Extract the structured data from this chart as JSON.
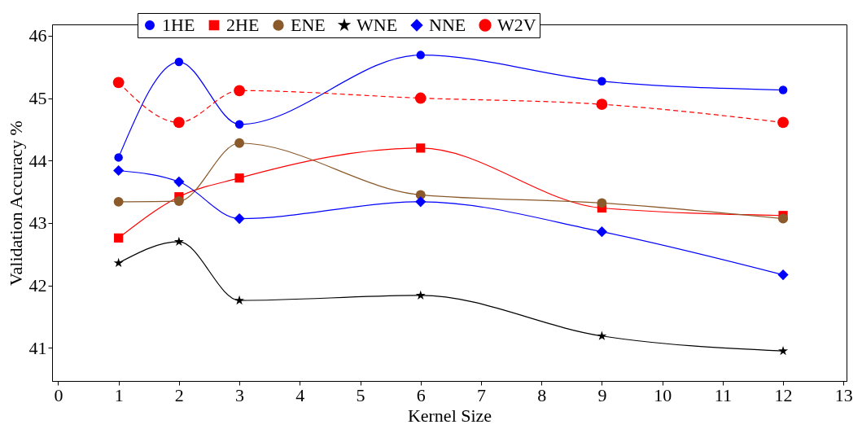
{
  "chart_data": {
    "type": "line",
    "xlabel": "Kernel Size",
    "ylabel": "Validation Accuracy %",
    "x": [
      1,
      2,
      3,
      6,
      9,
      12
    ],
    "series": [
      {
        "name": "1HE",
        "color": "#0000ff",
        "marker": "circle",
        "line_style": "solid",
        "values": [
          44.05,
          45.58,
          44.58,
          45.69,
          45.27,
          45.13
        ]
      },
      {
        "name": "2HE",
        "color": "#ff0000",
        "marker": "square",
        "line_style": "solid",
        "values": [
          42.76,
          43.42,
          43.72,
          44.2,
          43.24,
          43.12
        ]
      },
      {
        "name": "ENE",
        "color": "#8b5a2b",
        "marker": "circle",
        "line_style": "solid",
        "values": [
          43.34,
          43.35,
          44.28,
          43.45,
          43.32,
          43.07
        ]
      },
      {
        "name": "WNE",
        "color": "#000000",
        "marker": "star",
        "line_style": "solid",
        "values": [
          42.36,
          42.7,
          41.76,
          41.84,
          41.19,
          40.95
        ]
      },
      {
        "name": "NNE",
        "color": "#0000ff",
        "marker": "diamond",
        "line_style": "solid",
        "values": [
          43.84,
          43.66,
          43.07,
          43.34,
          42.86,
          42.17
        ]
      },
      {
        "name": "W2V",
        "color": "#ff0000",
        "marker": "circle",
        "line_style": "dashed",
        "values": [
          45.25,
          44.61,
          45.12,
          45.0,
          44.9,
          44.61
        ]
      }
    ],
    "xlim": [
      -0.1,
      13.05
    ],
    "ylim": [
      40.47,
      46.18
    ],
    "xticks": [
      0,
      1,
      2,
      3,
      4,
      5,
      6,
      7,
      8,
      9,
      10,
      11,
      12,
      13
    ],
    "yticks": [
      41,
      42,
      43,
      44,
      45,
      46
    ],
    "grid": false,
    "legend": "top"
  }
}
